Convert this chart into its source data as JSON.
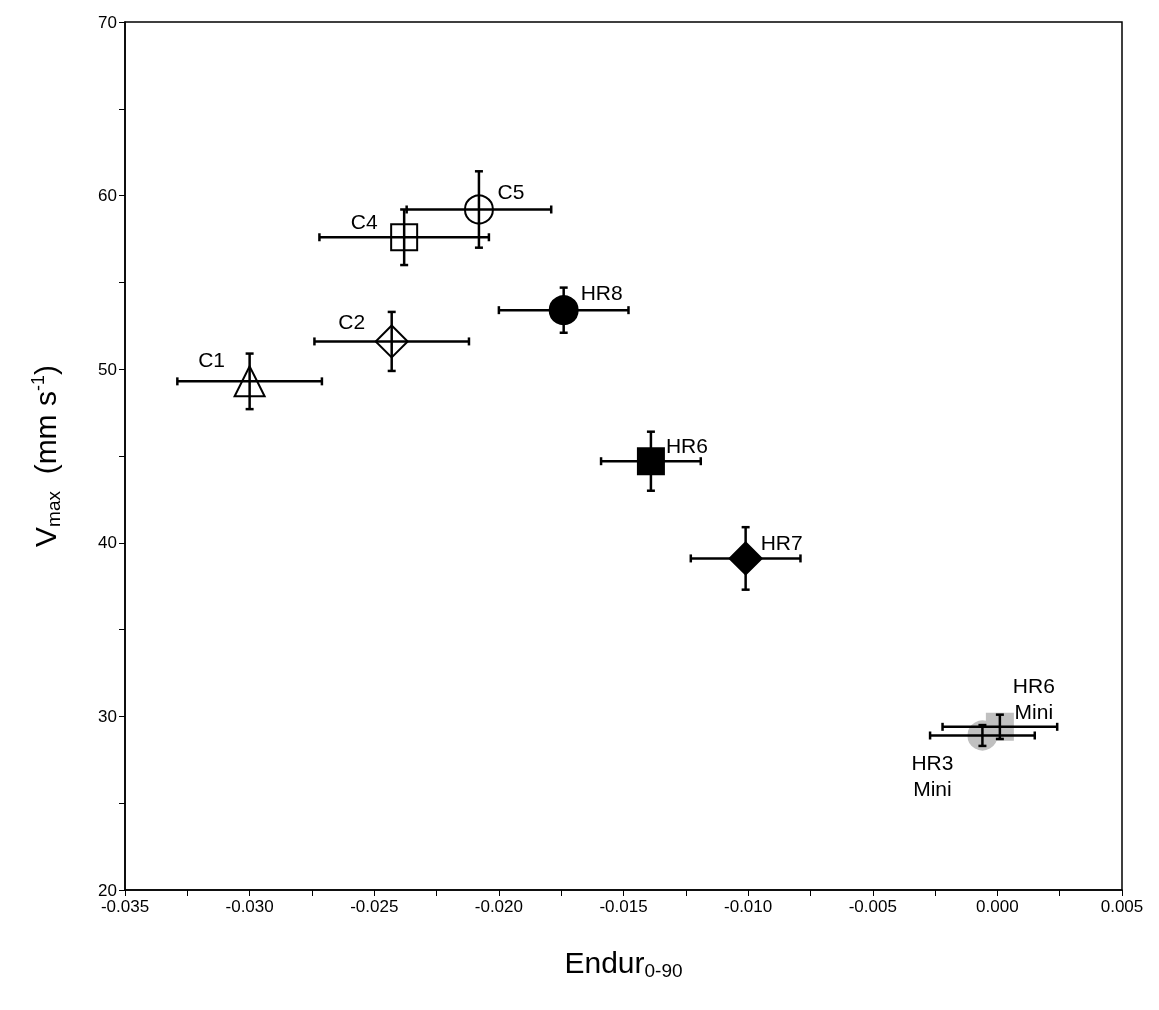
{
  "chart_data": {
    "type": "scatter",
    "xlabel": "Endur$_{0-90}$",
    "ylabel": "V$_{max}$  (mm s$^{-1}$)",
    "xlim": [
      -0.035,
      0.005
    ],
    "ylim": [
      20,
      70
    ],
    "xticks": [
      {
        "value": -0.035,
        "label": "-0.035"
      },
      {
        "value": -0.0325,
        "label": null
      },
      {
        "value": -0.03,
        "label": "-0.030"
      },
      {
        "value": -0.0275,
        "label": null
      },
      {
        "value": -0.025,
        "label": "-0.025"
      },
      {
        "value": -0.0225,
        "label": null
      },
      {
        "value": -0.02,
        "label": "-0.020"
      },
      {
        "value": -0.0175,
        "label": null
      },
      {
        "value": -0.015,
        "label": "-0.015"
      },
      {
        "value": -0.0125,
        "label": null
      },
      {
        "value": -0.01,
        "label": "-0.010"
      },
      {
        "value": -0.0075,
        "label": null
      },
      {
        "value": -0.005,
        "label": "-0.005"
      },
      {
        "value": -0.0025,
        "label": null
      },
      {
        "value": 0,
        "label": "0.000"
      },
      {
        "value": 0.0025,
        "label": null
      },
      {
        "value": 0.005,
        "label": "0.005"
      }
    ],
    "yticks": [
      20,
      {
        "value": 25,
        "label": null
      },
      30,
      {
        "value": 35,
        "label": null
      },
      40,
      {
        "value": 45,
        "label": null
      },
      50,
      {
        "value": 55,
        "label": null
      },
      60,
      {
        "value": 65,
        "label": null
      },
      70
    ],
    "series": [
      {
        "name": "C1",
        "marker": "triangle",
        "color": "#ffffff",
        "x": [
          -0.03
        ],
        "values": [
          49.3
        ],
        "errors": [
          1.6
        ],
        "xerrors": [
          0.0029
        ]
      },
      {
        "name": "C2",
        "marker": "diamond",
        "color": "#ffffff",
        "x": [
          -0.0243
        ],
        "values": [
          51.6
        ],
        "errors": [
          1.7
        ],
        "xerrors": [
          0.0031
        ]
      },
      {
        "name": "C4",
        "marker": "square",
        "color": "#ffffff",
        "x": [
          -0.0238
        ],
        "values": [
          57.6
        ],
        "errors": [
          1.6
        ],
        "xerrors": [
          0.0034
        ]
      },
      {
        "name": "C5",
        "marker": "circle",
        "color": "#ffffff",
        "x": [
          -0.0208
        ],
        "values": [
          59.2
        ],
        "errors": [
          2.2
        ],
        "xerrors": [
          0.0029
        ]
      },
      {
        "name": "HR8",
        "marker": "circle",
        "color": "#000000",
        "x": [
          -0.0174
        ],
        "values": [
          53.4
        ],
        "errors": [
          1.3
        ],
        "xerrors": [
          0.0026
        ]
      },
      {
        "name": "HR6",
        "marker": "square",
        "color": "#000000",
        "x": [
          -0.0139
        ],
        "values": [
          44.7
        ],
        "errors": [
          1.7
        ],
        "xerrors": [
          0.002
        ]
      },
      {
        "name": "HR7",
        "marker": "diamond",
        "color": "#000000",
        "x": [
          -0.0101
        ],
        "values": [
          39.1
        ],
        "errors": [
          1.8
        ],
        "xerrors": [
          0.0022
        ]
      },
      {
        "name": "HR6\nMini",
        "marker": "square",
        "color": "#c0c0c0",
        "x": [
          0.0001
        ],
        "values": [
          29.4
        ],
        "errors": [
          0.7
        ],
        "xerrors": [
          0.0023
        ]
      },
      {
        "name": "HR3\nMini",
        "marker": "circle",
        "color": "#c0c0c0",
        "x": [
          -0.0006
        ],
        "values": [
          28.9
        ],
        "errors": [
          0.6
        ],
        "xerrors": [
          0.0021
        ]
      }
    ],
    "legend": false
  }
}
